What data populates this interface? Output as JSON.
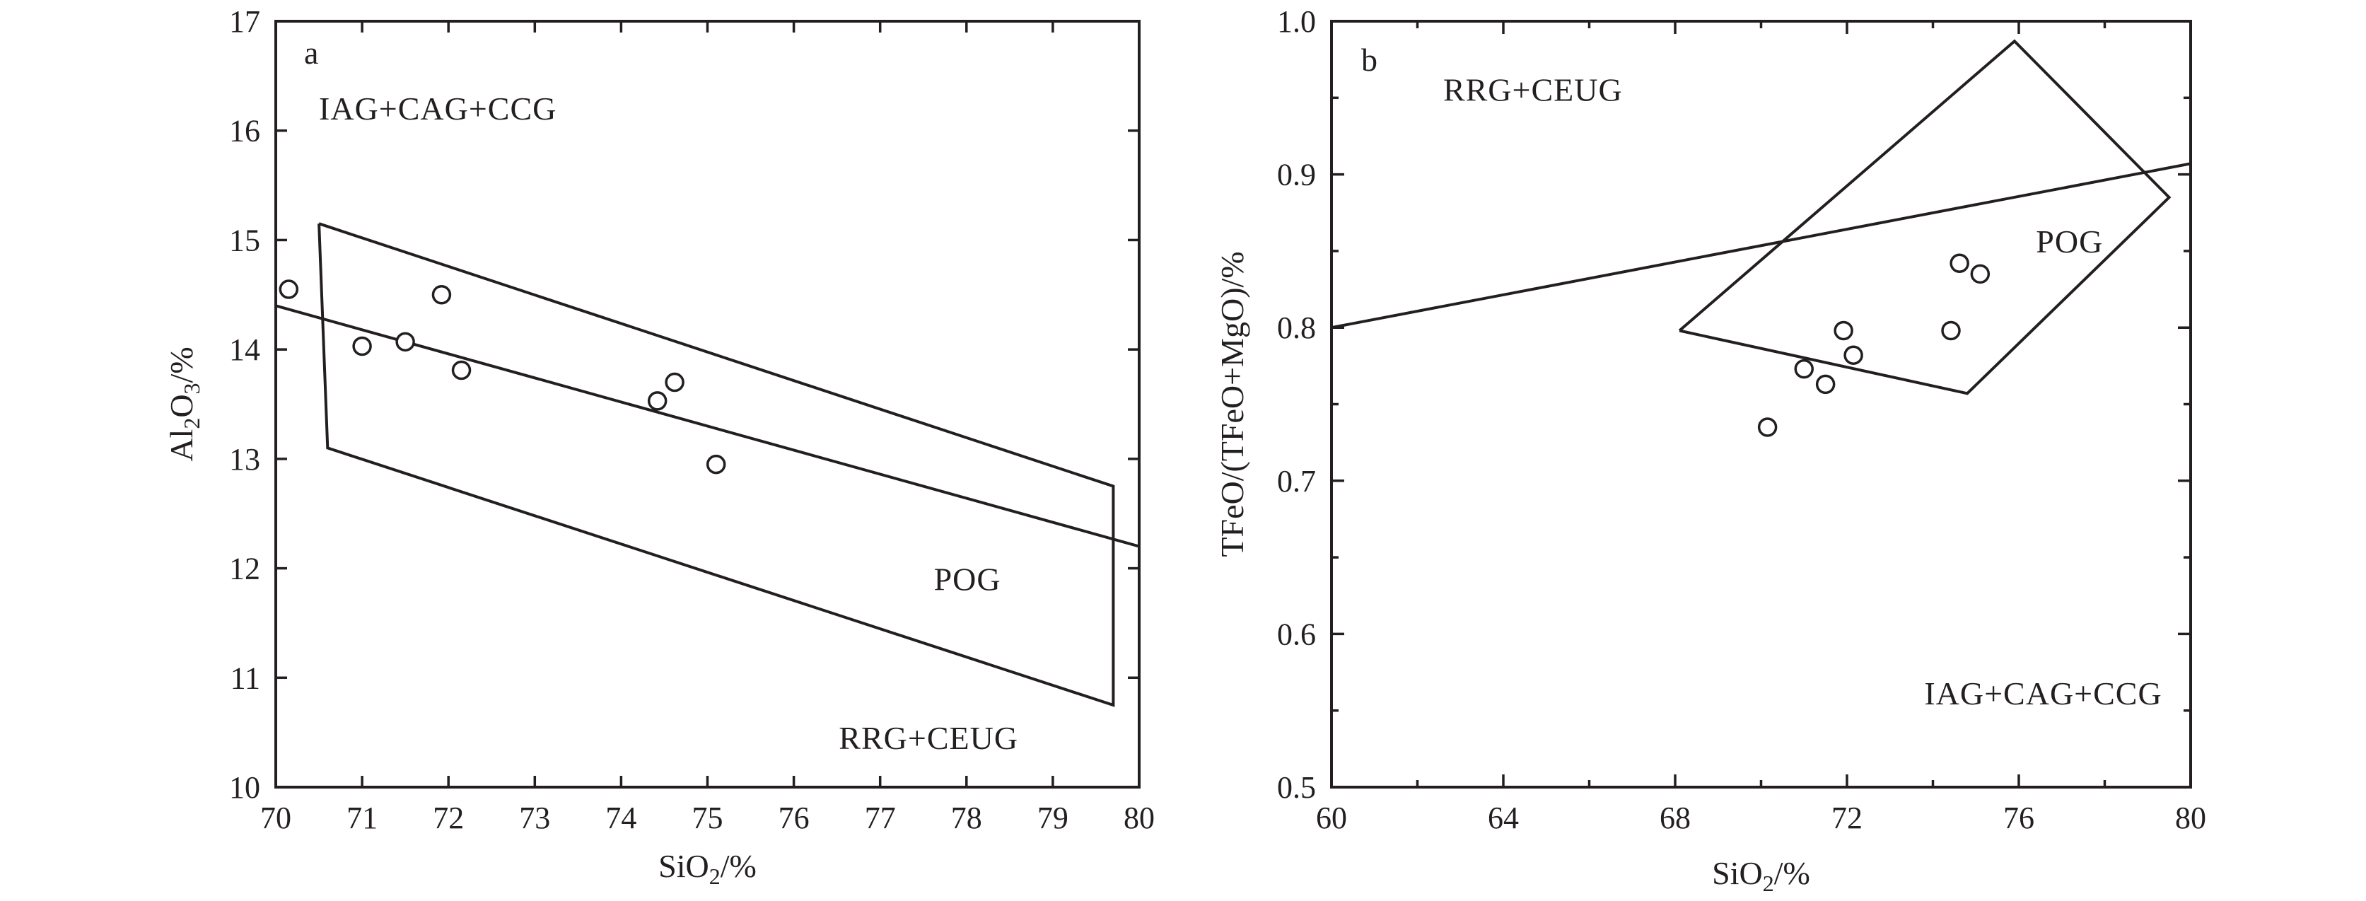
{
  "chart_data": [
    {
      "type": "scatter",
      "panel_label": "a",
      "xlabel": {
        "main": "SiO",
        "sub": "2",
        "suffix": "/%"
      },
      "ylabel": {
        "main": "Al",
        "sub1": "2",
        "mid": "O",
        "sub2": "3",
        "suffix": "/%"
      },
      "xlim": [
        70,
        80
      ],
      "ylim": [
        10,
        17
      ],
      "x_ticks": [
        "70",
        "71",
        "72",
        "73",
        "74",
        "75",
        "76",
        "77",
        "78",
        "79",
        "80"
      ],
      "y_ticks": [
        "10",
        "11",
        "12",
        "13",
        "14",
        "15",
        "16",
        "17"
      ],
      "grid": false,
      "points": [
        {
          "x": 70.15,
          "y": 14.55
        },
        {
          "x": 71.0,
          "y": 14.03
        },
        {
          "x": 71.5,
          "y": 14.07
        },
        {
          "x": 71.92,
          "y": 14.5
        },
        {
          "x": 72.15,
          "y": 13.81
        },
        {
          "x": 74.42,
          "y": 13.53
        },
        {
          "x": 74.62,
          "y": 13.7
        },
        {
          "x": 75.1,
          "y": 12.95
        }
      ],
      "boundaries": [
        {
          "points": [
            [
              70.0,
              14.4
            ],
            [
              80.0,
              12.2
            ]
          ]
        },
        {
          "points": [
            [
              70.5,
              15.15
            ],
            [
              79.7,
              12.75
            ],
            [
              79.7,
              10.75
            ],
            [
              70.6,
              13.1
            ],
            [
              70.5,
              15.15
            ]
          ]
        }
      ],
      "regions": [
        {
          "label": "IAG+CAG+CCG",
          "x": 70.5,
          "y": 16.1
        },
        {
          "label": "POG",
          "x": 78.4,
          "y": 11.8
        },
        {
          "label": "RRG+CEUG",
          "x": 78.6,
          "y": 10.35
        }
      ]
    },
    {
      "type": "scatter",
      "panel_label": "b",
      "xlabel": {
        "main": "SiO",
        "sub": "2",
        "suffix": "/%"
      },
      "ylabel": {
        "text": "TFeO/(TFeO+MgO)/%"
      },
      "xlim": [
        60,
        80
      ],
      "ylim": [
        0.5,
        1.0
      ],
      "x_ticks": [
        "60",
        "64",
        "68",
        "72",
        "76",
        "80"
      ],
      "y_ticks": [
        "0.5",
        "0.6",
        "0.7",
        "0.8",
        "0.9",
        "1.0"
      ],
      "grid": false,
      "points": [
        {
          "x": 70.15,
          "y": 0.735
        },
        {
          "x": 71.0,
          "y": 0.773
        },
        {
          "x": 71.5,
          "y": 0.763
        },
        {
          "x": 71.92,
          "y": 0.798
        },
        {
          "x": 72.15,
          "y": 0.782
        },
        {
          "x": 74.42,
          "y": 0.798
        },
        {
          "x": 74.62,
          "y": 0.842
        },
        {
          "x": 75.1,
          "y": 0.835
        }
      ],
      "boundaries": [
        {
          "points": [
            [
              60.0,
              0.8
            ],
            [
              80.0,
              0.907
            ]
          ]
        },
        {
          "points": [
            [
              68.1,
              0.798
            ],
            [
              75.9,
              0.987
            ],
            [
              79.5,
              0.885
            ],
            [
              74.8,
              0.757
            ],
            [
              68.1,
              0.798
            ]
          ]
        }
      ],
      "regions": [
        {
          "label": "RRG+CEUG",
          "x": 62.6,
          "y": 0.948
        },
        {
          "label": "POG",
          "x": 76.4,
          "y": 0.849
        },
        {
          "label": "IAG+CAG+CCG",
          "x": 73.8,
          "y": 0.554
        }
      ]
    }
  ]
}
